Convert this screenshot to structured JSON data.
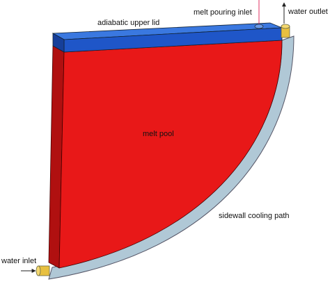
{
  "labels": {
    "lid": "adiabatic upper lid",
    "pouring_inlet": "melt pouring inlet",
    "water_outlet": "water outlet",
    "melt_pool": "melt pool",
    "cooling_path": "sidewall cooling path",
    "water_inlet": "water inlet"
  }
}
